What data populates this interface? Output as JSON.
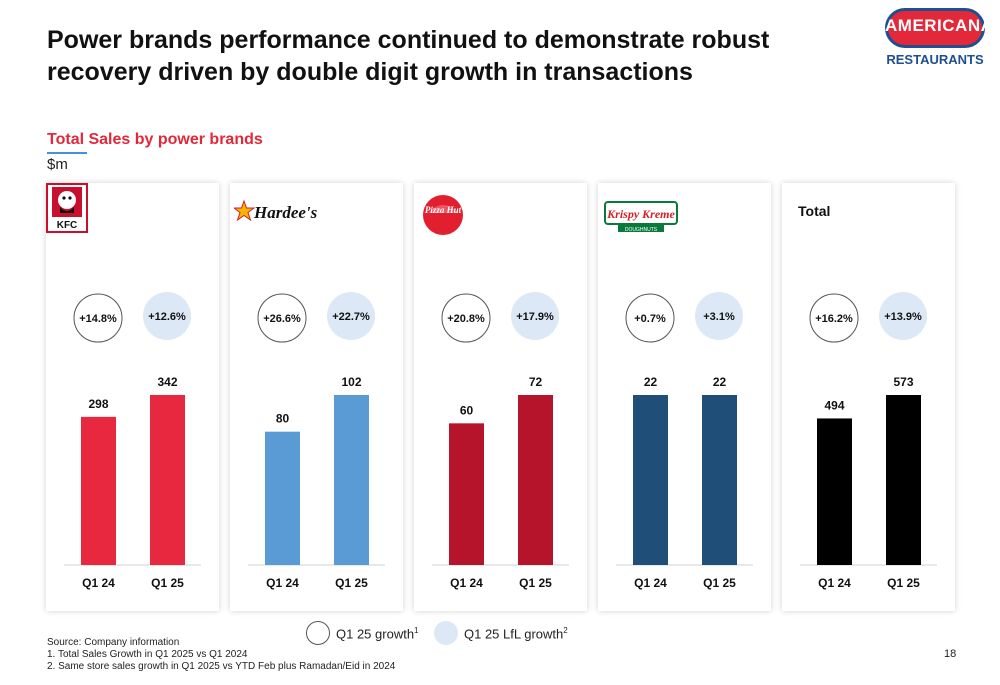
{
  "slide": {
    "title": "Power brands performance continued to demonstrate robust recovery driven by double digit growth in transactions",
    "subtitle": "Total Sales by power brands",
    "unit": "$m",
    "page_number": "18"
  },
  "logo": {
    "name": "AMERICANA",
    "sub": "RESTAURANTS"
  },
  "legend": {
    "growth_label": "Q1 25 growth",
    "growth_sup": "1",
    "lfl_label": "Q1 25 LfL growth",
    "lfl_sup": "2"
  },
  "footnotes": {
    "source": "Source: Company information",
    "note1": "1. Total Sales Growth in Q1 2025 vs Q1 2024",
    "note2": "2. Same store sales growth in Q1 2025 vs YTD Feb plus Ramadan/Eid in 2024"
  },
  "brand_labels": {
    "kfc": "KFC",
    "hardees": "Hardee's",
    "pizzahut": "Pizza Hut",
    "krispy": "Krispy Kreme",
    "krispy_sub": "DOUGHNUTS",
    "total": "Total"
  },
  "chart_data": [
    {
      "type": "bar",
      "brand": "kfc",
      "categories": [
        "Q1 24",
        "Q1 25"
      ],
      "values": [
        298,
        342
      ],
      "labels": [
        "298",
        "342"
      ],
      "growth": "+14.8%",
      "lfl_growth": "+12.6%",
      "color": "#e8283f"
    },
    {
      "type": "bar",
      "brand": "hardees",
      "categories": [
        "Q1 24",
        "Q1 25"
      ],
      "values": [
        80,
        102
      ],
      "labels": [
        "80",
        "102"
      ],
      "growth": "+26.6%",
      "lfl_growth": "+22.7%",
      "color": "#5b9bd5"
    },
    {
      "type": "bar",
      "brand": "pizzahut",
      "categories": [
        "Q1 24",
        "Q1 25"
      ],
      "values": [
        60,
        72
      ],
      "labels": [
        "60",
        "72"
      ],
      "growth": "+20.8%",
      "lfl_growth": "+17.9%",
      "color": "#b5142b"
    },
    {
      "type": "bar",
      "brand": "krispy",
      "categories": [
        "Q1 24",
        "Q1 25"
      ],
      "values": [
        22,
        22
      ],
      "labels": [
        "22",
        "22"
      ],
      "growth": "+0.7%",
      "lfl_growth": "+3.1%",
      "color": "#1f4e79"
    },
    {
      "type": "bar",
      "brand": "total",
      "categories": [
        "Q1 24",
        "Q1 25"
      ],
      "values": [
        494,
        573
      ],
      "labels": [
        "494",
        "573"
      ],
      "growth": "+16.2%",
      "lfl_growth": "+13.9%",
      "color": "#000000"
    }
  ]
}
